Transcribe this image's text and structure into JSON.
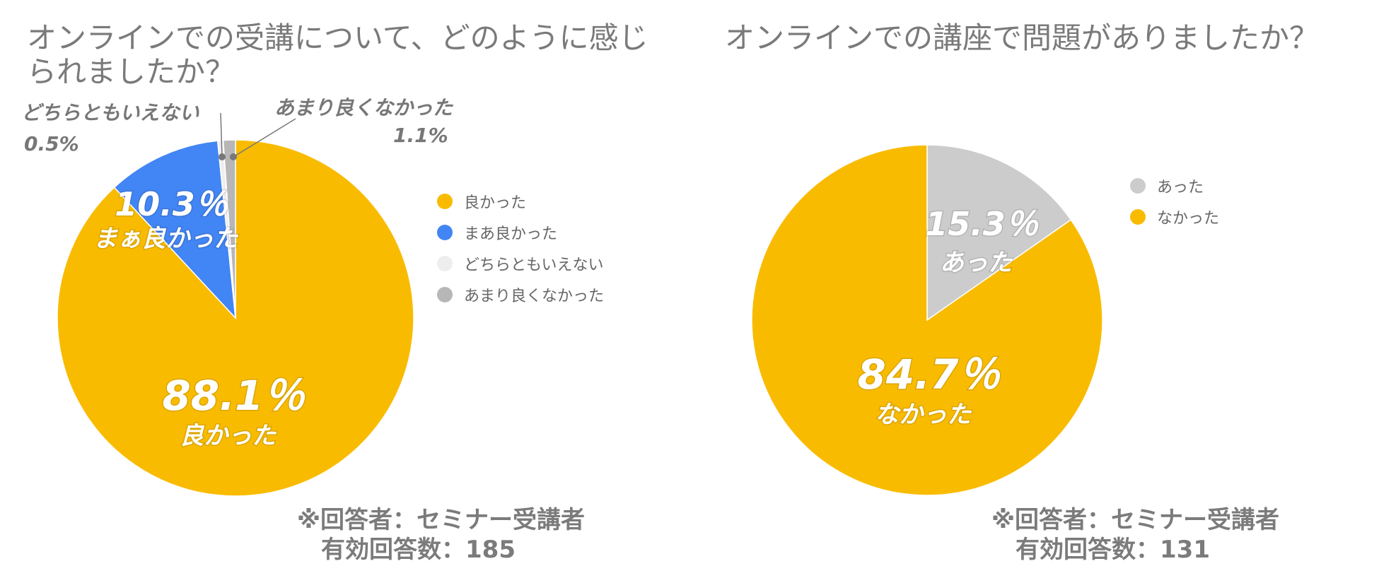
{
  "chart_data": [
    {
      "type": "pie",
      "title": "オンラインでの受講について、どのように感じられましたか？",
      "series": [
        {
          "slices": [
            {
              "label": "良かった",
              "value": 88.1,
              "color": "#F9BB00",
              "data_label_value": "88.1％",
              "data_label_text": "良かった"
            },
            {
              "label": "まあ良かった",
              "value": 10.3,
              "color": "#4285F4",
              "data_label_value": "10.3％",
              "data_label_text": "まぁ良かった"
            },
            {
              "label": "どちらともいえない",
              "value": 0.5,
              "color": "#EEEEEE",
              "data_label_value": "0.5%",
              "data_label_text": "どちらともいえない"
            },
            {
              "label": "あまり良くなかった",
              "value": 1.1,
              "color": "#B7B7B7",
              "data_label_value": "1.1%",
              "data_label_text": "あまり良くなかった"
            }
          ]
        }
      ],
      "legend_position": "right",
      "note": {
        "line1": "※回答者：セミナー受講者",
        "line2": "有効回答数：185"
      }
    },
    {
      "type": "pie",
      "title": "オンラインでの講座で問題がありましたか？",
      "series": [
        {
          "slices": [
            {
              "label": "あった",
              "value": 15.3,
              "color": "#CCCCCC",
              "data_label_value": "15.3％",
              "data_label_text": "あった"
            },
            {
              "label": "なかった",
              "value": 84.7,
              "color": "#F9BB00",
              "data_label_value": "84.7％",
              "data_label_text": "なかった"
            }
          ]
        }
      ],
      "legend_position": "right",
      "note": {
        "line1": "※回答者：セミナー受講者",
        "line2": "有効回答数：131"
      }
    }
  ]
}
